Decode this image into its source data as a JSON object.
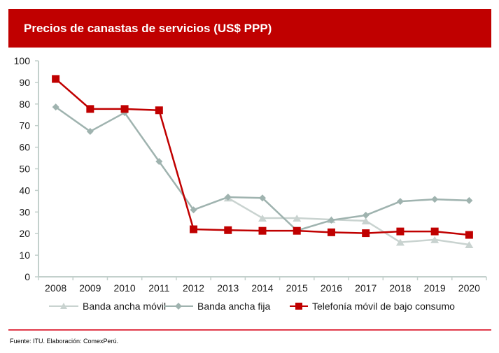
{
  "header": {
    "title": "Precios de canastas de servicios (US$ PPP)"
  },
  "colors": {
    "banner": "#c00000",
    "separator": "#e03a4a"
  },
  "footer": {
    "source": "Fuente: ITU. Elaboración: ComexPerú."
  },
  "chart_data": {
    "type": "line",
    "title": "Precios de canastas de servicios (US$ PPP)",
    "xlabel": "",
    "ylabel": "",
    "categories": [
      "2008",
      "2009",
      "2010",
      "2011",
      "2012",
      "2013",
      "2014",
      "2015",
      "2016",
      "2017",
      "2018",
      "2019",
      "2020"
    ],
    "ylim": [
      0,
      100
    ],
    "yticks": [
      0,
      10,
      20,
      30,
      40,
      50,
      60,
      70,
      80,
      90,
      100
    ],
    "grid": false,
    "legend_position": "bottom",
    "series": [
      {
        "name": "Banda ancha móvil",
        "color": "#c9d3d0",
        "marker": "triangle",
        "values": [
          null,
          null,
          null,
          null,
          null,
          36.5,
          27.2,
          27.2,
          26.5,
          25.9,
          16.0,
          17.2,
          14.9
        ]
      },
      {
        "name": "Banda ancha fija",
        "color": "#9fb3af",
        "marker": "diamond",
        "values": [
          78.6,
          67.3,
          76.0,
          53.4,
          31.0,
          36.9,
          36.5,
          21.4,
          26.2,
          28.5,
          34.9,
          35.9,
          35.3
        ]
      },
      {
        "name": "Telefonía móvil de bajo consumo",
        "color": "#c00000",
        "marker": "square",
        "values": [
          91.6,
          77.7,
          77.7,
          77.1,
          22.0,
          21.6,
          21.3,
          21.3,
          20.6,
          20.2,
          21.0,
          21.0,
          19.4
        ]
      }
    ]
  }
}
